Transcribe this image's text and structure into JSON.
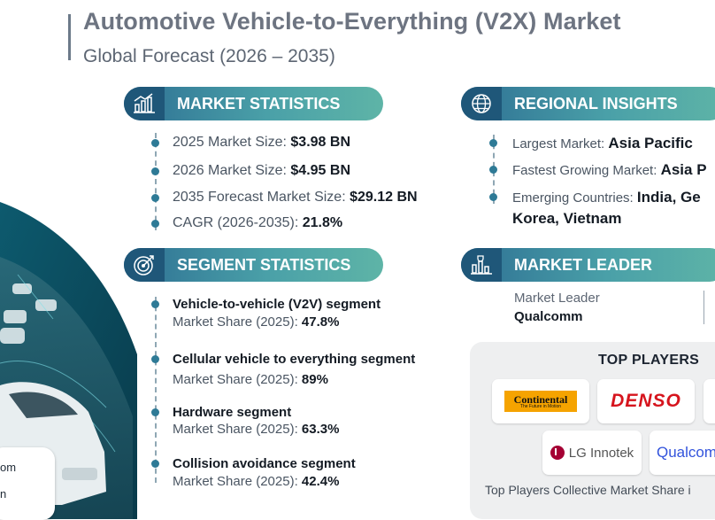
{
  "header": {
    "title": "Automotive Vehicle-to-Everything (V2X) Market",
    "subtitle": "Global Forecast (2026 – 2035)"
  },
  "image_overlay": {
    "line1": "om",
    "line2": "n"
  },
  "market_statistics": {
    "heading": "MARKET STATISTICS",
    "icon": "bar-chart-icon",
    "items": [
      {
        "label": "2025 Market Size: ",
        "value": "$3.98 BN"
      },
      {
        "label": "2026 Market Size: ",
        "value": "$4.95 BN"
      },
      {
        "label": "2035 Forecast Market Size: ",
        "value": "$29.12 BN"
      },
      {
        "label": "CAGR (2026-2035): ",
        "value": "21.8%"
      }
    ]
  },
  "segment_statistics": {
    "heading": "SEGMENT STATISTICS",
    "icon": "target-icon",
    "share_label": "Market Share (2025): ",
    "items": [
      {
        "title": "Vehicle-to-vehicle (V2V) segment",
        "value": "47.8%"
      },
      {
        "title": "Cellular vehicle to everything segment",
        "value": "89%"
      },
      {
        "title": "Hardware segment",
        "value": "63.3%"
      },
      {
        "title": "Collision avoidance segment",
        "value": "42.4%"
      }
    ]
  },
  "regional_insights": {
    "heading": "REGIONAL INSIGHTS",
    "icon": "globe-icon",
    "items": [
      {
        "label": "Largest Market: ",
        "value": "Asia Pacific"
      },
      {
        "label": "Fastest Growing Market: ",
        "value": "Asia P"
      },
      {
        "label": "Emerging Countries:  ",
        "value": "India, Ge",
        "value_line2": "Korea, Vietnam"
      }
    ]
  },
  "market_leader": {
    "heading": "MARKET LEADER",
    "icon": "chart-trophy-icon",
    "label": "Market Leader",
    "value": "Qualcomm"
  },
  "top_players": {
    "heading": "TOP PLAYERS",
    "logos": [
      "Continental",
      "The Future in Motion",
      "DENSO",
      "LG Innotek",
      "Qualcom"
    ],
    "footer": "Top Players Collective Market Share i"
  },
  "colors": {
    "pill_start": "#2d6f93",
    "pill_end": "#5eb4a7",
    "icon_bg": "#1f5779",
    "denso_red": "#d6141d",
    "lg_red": "#a50034",
    "qualcomm_blue": "#3253dc",
    "continental_yellow": "#f5a300"
  }
}
